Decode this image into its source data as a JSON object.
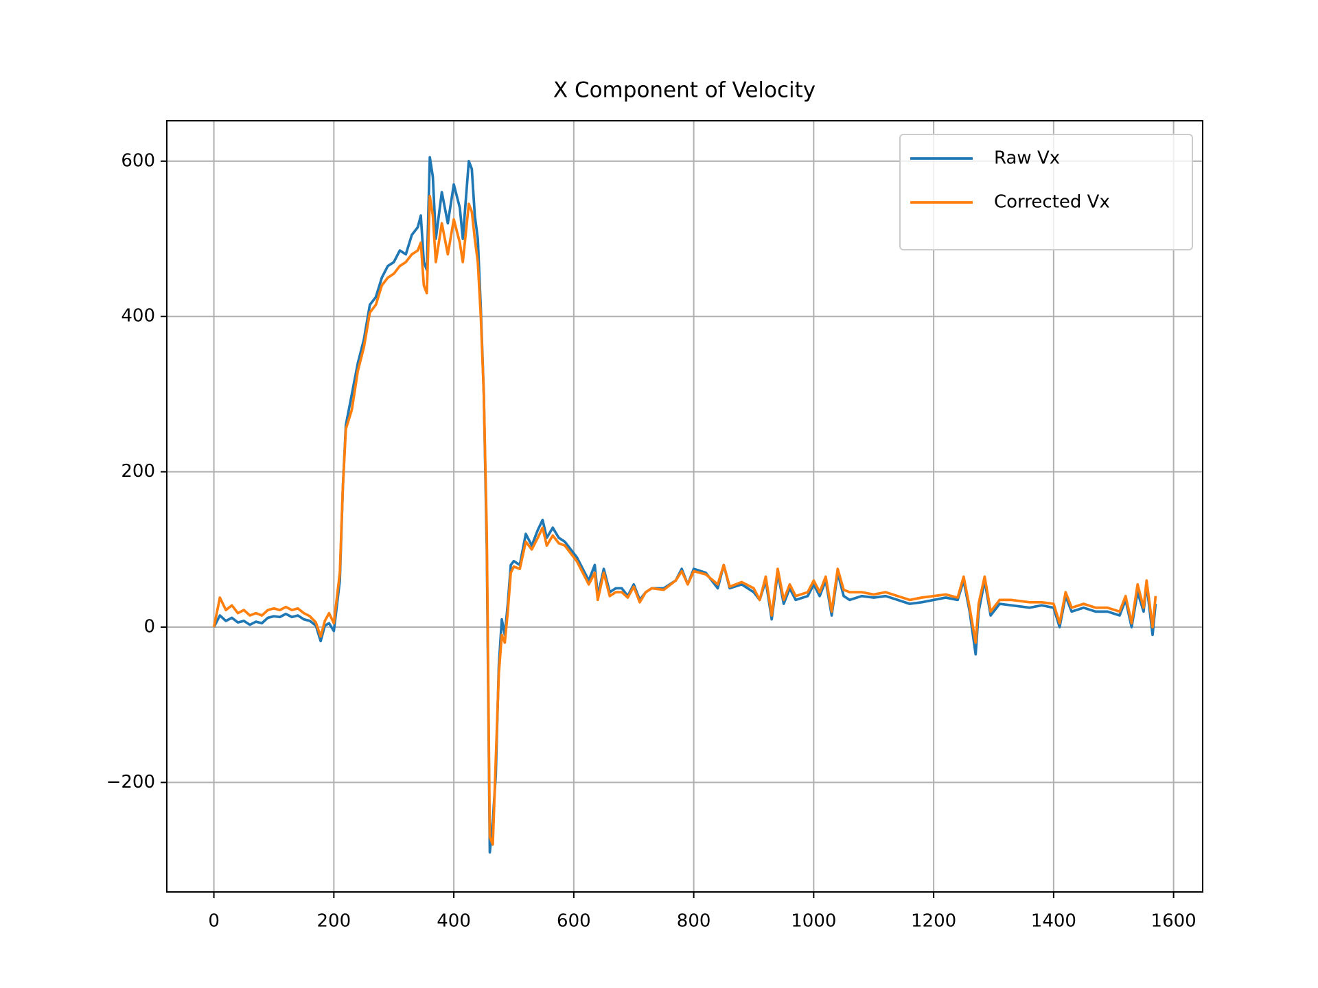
{
  "chart_data": {
    "type": "line",
    "title": "X Component of Velocity",
    "x": [
      0,
      10,
      20,
      30,
      40,
      50,
      60,
      70,
      80,
      90,
      100,
      110,
      120,
      130,
      140,
      150,
      160,
      170,
      178,
      185,
      192,
      200,
      210,
      215,
      220,
      230,
      240,
      250,
      260,
      270,
      280,
      290,
      300,
      310,
      320,
      330,
      340,
      345,
      350,
      355,
      360,
      365,
      370,
      380,
      390,
      400,
      410,
      415,
      425,
      430,
      435,
      440,
      445,
      450,
      455,
      460,
      465,
      470,
      475,
      480,
      485,
      490,
      495,
      500,
      510,
      520,
      530,
      540,
      548,
      555,
      565,
      575,
      585,
      595,
      605,
      615,
      625,
      635,
      640,
      650,
      660,
      670,
      680,
      690,
      700,
      710,
      720,
      730,
      750,
      770,
      780,
      790,
      800,
      820,
      840,
      850,
      860,
      880,
      900,
      910,
      920,
      930,
      940,
      950,
      960,
      970,
      990,
      1000,
      1010,
      1020,
      1030,
      1040,
      1050,
      1060,
      1080,
      1100,
      1120,
      1140,
      1160,
      1180,
      1200,
      1220,
      1240,
      1250,
      1260,
      1270,
      1275,
      1285,
      1295,
      1310,
      1330,
      1360,
      1380,
      1400,
      1410,
      1420,
      1430,
      1450,
      1470,
      1490,
      1510,
      1520,
      1530,
      1540,
      1550,
      1555,
      1565,
      1570
    ],
    "series": [
      {
        "name": "Raw Vx",
        "color": "#1f77b4",
        "values": [
          0,
          15,
          8,
          12,
          6,
          8,
          3,
          7,
          5,
          12,
          14,
          13,
          17,
          13,
          15,
          10,
          8,
          2,
          -18,
          2,
          5,
          -5,
          60,
          180,
          260,
          300,
          340,
          370,
          415,
          425,
          450,
          465,
          470,
          485,
          480,
          505,
          515,
          530,
          470,
          460,
          605,
          580,
          500,
          560,
          520,
          570,
          540,
          500,
          600,
          590,
          530,
          500,
          410,
          300,
          100,
          -290,
          -250,
          -190,
          -50,
          10,
          -10,
          30,
          80,
          85,
          80,
          120,
          105,
          125,
          138,
          115,
          128,
          115,
          110,
          100,
          90,
          75,
          60,
          80,
          40,
          75,
          45,
          50,
          50,
          40,
          55,
          35,
          45,
          50,
          50,
          60,
          75,
          55,
          75,
          70,
          50,
          80,
          50,
          55,
          45,
          35,
          60,
          10,
          70,
          30,
          50,
          35,
          40,
          55,
          40,
          60,
          15,
          70,
          40,
          35,
          40,
          38,
          40,
          35,
          30,
          32,
          35,
          38,
          35,
          60,
          20,
          -35,
          20,
          60,
          15,
          30,
          28,
          25,
          28,
          25,
          0,
          40,
          20,
          25,
          20,
          20,
          15,
          35,
          0,
          45,
          20,
          55,
          -10,
          30
        ]
      },
      {
        "name": "Corrected Vx",
        "color": "#ff7f0e",
        "values": [
          0,
          38,
          22,
          28,
          18,
          22,
          15,
          18,
          15,
          22,
          24,
          22,
          26,
          22,
          24,
          18,
          14,
          6,
          -12,
          8,
          18,
          5,
          70,
          180,
          255,
          280,
          330,
          360,
          405,
          415,
          440,
          450,
          455,
          465,
          470,
          480,
          485,
          495,
          440,
          430,
          555,
          530,
          470,
          520,
          480,
          525,
          495,
          470,
          545,
          535,
          500,
          470,
          400,
          300,
          120,
          -270,
          -280,
          -170,
          -60,
          -10,
          -20,
          20,
          70,
          78,
          75,
          110,
          100,
          115,
          128,
          105,
          118,
          108,
          105,
          95,
          85,
          70,
          55,
          70,
          35,
          70,
          40,
          45,
          45,
          38,
          52,
          32,
          45,
          50,
          48,
          60,
          72,
          55,
          72,
          68,
          55,
          80,
          52,
          58,
          50,
          35,
          65,
          15,
          75,
          35,
          55,
          40,
          45,
          60,
          45,
          65,
          20,
          75,
          48,
          45,
          45,
          42,
          45,
          40,
          35,
          38,
          40,
          42,
          38,
          65,
          25,
          -20,
          30,
          65,
          20,
          35,
          35,
          32,
          32,
          30,
          5,
          45,
          25,
          30,
          25,
          25,
          20,
          40,
          5,
          55,
          25,
          60,
          0,
          40
        ]
      }
    ],
    "xlim": [
      -78.5,
      1648.5
    ],
    "ylim": [
      -341,
      652
    ],
    "xticks": [
      0,
      200,
      400,
      600,
      800,
      1000,
      1200,
      1400,
      1600
    ],
    "yticks": [
      {
        "value": -200,
        "label": "−200"
      },
      0,
      200,
      400,
      600
    ],
    "grid": true,
    "legend": "upper-right"
  }
}
